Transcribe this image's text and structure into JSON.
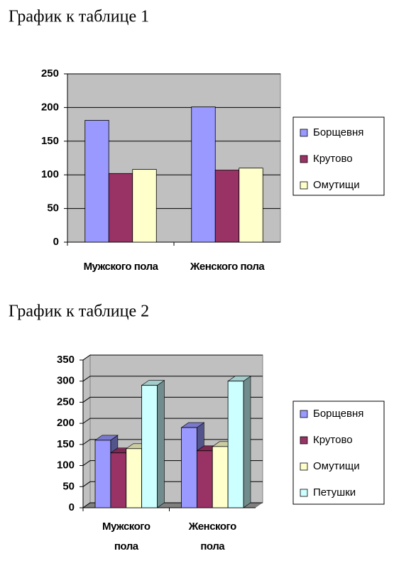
{
  "chart_data": [
    {
      "type": "bar",
      "title": "График к таблице 1",
      "categories": [
        "Мужского пола",
        "Женского пола"
      ],
      "series": [
        {
          "name": "Борщевня",
          "color": "#9999ff",
          "values": [
            181,
            201
          ]
        },
        {
          "name": "Крутово",
          "color": "#993366",
          "values": [
            102,
            107
          ]
        },
        {
          "name": "Омутищи",
          "color": "#ffffcc",
          "values": [
            108,
            110
          ]
        }
      ],
      "ylim": [
        0,
        250
      ],
      "yticks": [
        0,
        50,
        100,
        150,
        200,
        250
      ],
      "grid": true,
      "legend": "right",
      "3d": false
    },
    {
      "type": "bar",
      "title": "График к таблице 2",
      "categories": [
        "Мужского пола",
        "Женского пола"
      ],
      "series": [
        {
          "name": "Борщевня",
          "color": "#9999ff",
          "values": [
            160,
            190
          ]
        },
        {
          "name": "Крутово",
          "color": "#993366",
          "values": [
            130,
            135
          ]
        },
        {
          "name": "Омутищи",
          "color": "#ffffcc",
          "values": [
            140,
            145
          ]
        },
        {
          "name": "Петушки",
          "color": "#ccffff",
          "values": [
            290,
            300
          ]
        }
      ],
      "ylim": [
        0,
        350
      ],
      "yticks": [
        0,
        50,
        100,
        150,
        200,
        250,
        300,
        350
      ],
      "grid": true,
      "legend": "right",
      "3d": true
    }
  ]
}
